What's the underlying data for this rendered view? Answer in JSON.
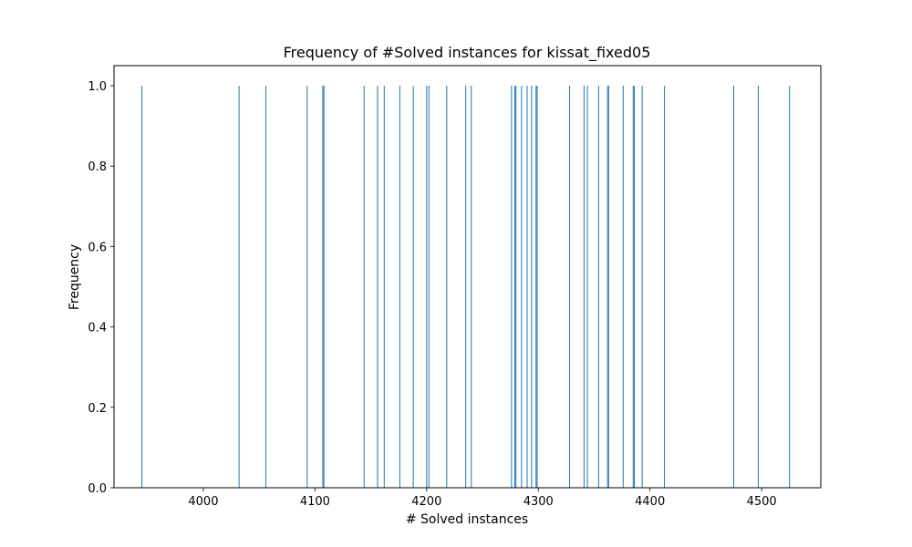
{
  "chart_data": {
    "type": "bar",
    "title": "Frequency of #Solved instances for kissat_fixed05",
    "xlabel": "# Solved instances",
    "ylabel": "Frequency",
    "xlim": [
      3920,
      4553
    ],
    "ylim": [
      0,
      1.05
    ],
    "xticks": [
      4000,
      4100,
      4200,
      4300,
      4400,
      4500
    ],
    "yticks": [
      0.0,
      0.2,
      0.4,
      0.6,
      0.8,
      1.0
    ],
    "bar_color": "#1f77b4",
    "grid": false,
    "x": [
      3945,
      4032,
      4056,
      4093,
      4107,
      4108,
      4144,
      4156,
      4162,
      4176,
      4188,
      4200,
      4202,
      4218,
      4235,
      4240,
      4276,
      4279,
      4280,
      4285,
      4290,
      4294,
      4298,
      4299,
      4328,
      4341,
      4344,
      4354,
      4362,
      4363,
      4376,
      4385,
      4386,
      4393,
      4413,
      4475,
      4497,
      4525
    ],
    "values": [
      1,
      1,
      1,
      1,
      1,
      1,
      1,
      1,
      1,
      1,
      1,
      1,
      1,
      1,
      1,
      1,
      1,
      1,
      1,
      1,
      1,
      1,
      1,
      1,
      1,
      1,
      1,
      1,
      1,
      1,
      1,
      1,
      1,
      1,
      1,
      1,
      1,
      1
    ]
  }
}
